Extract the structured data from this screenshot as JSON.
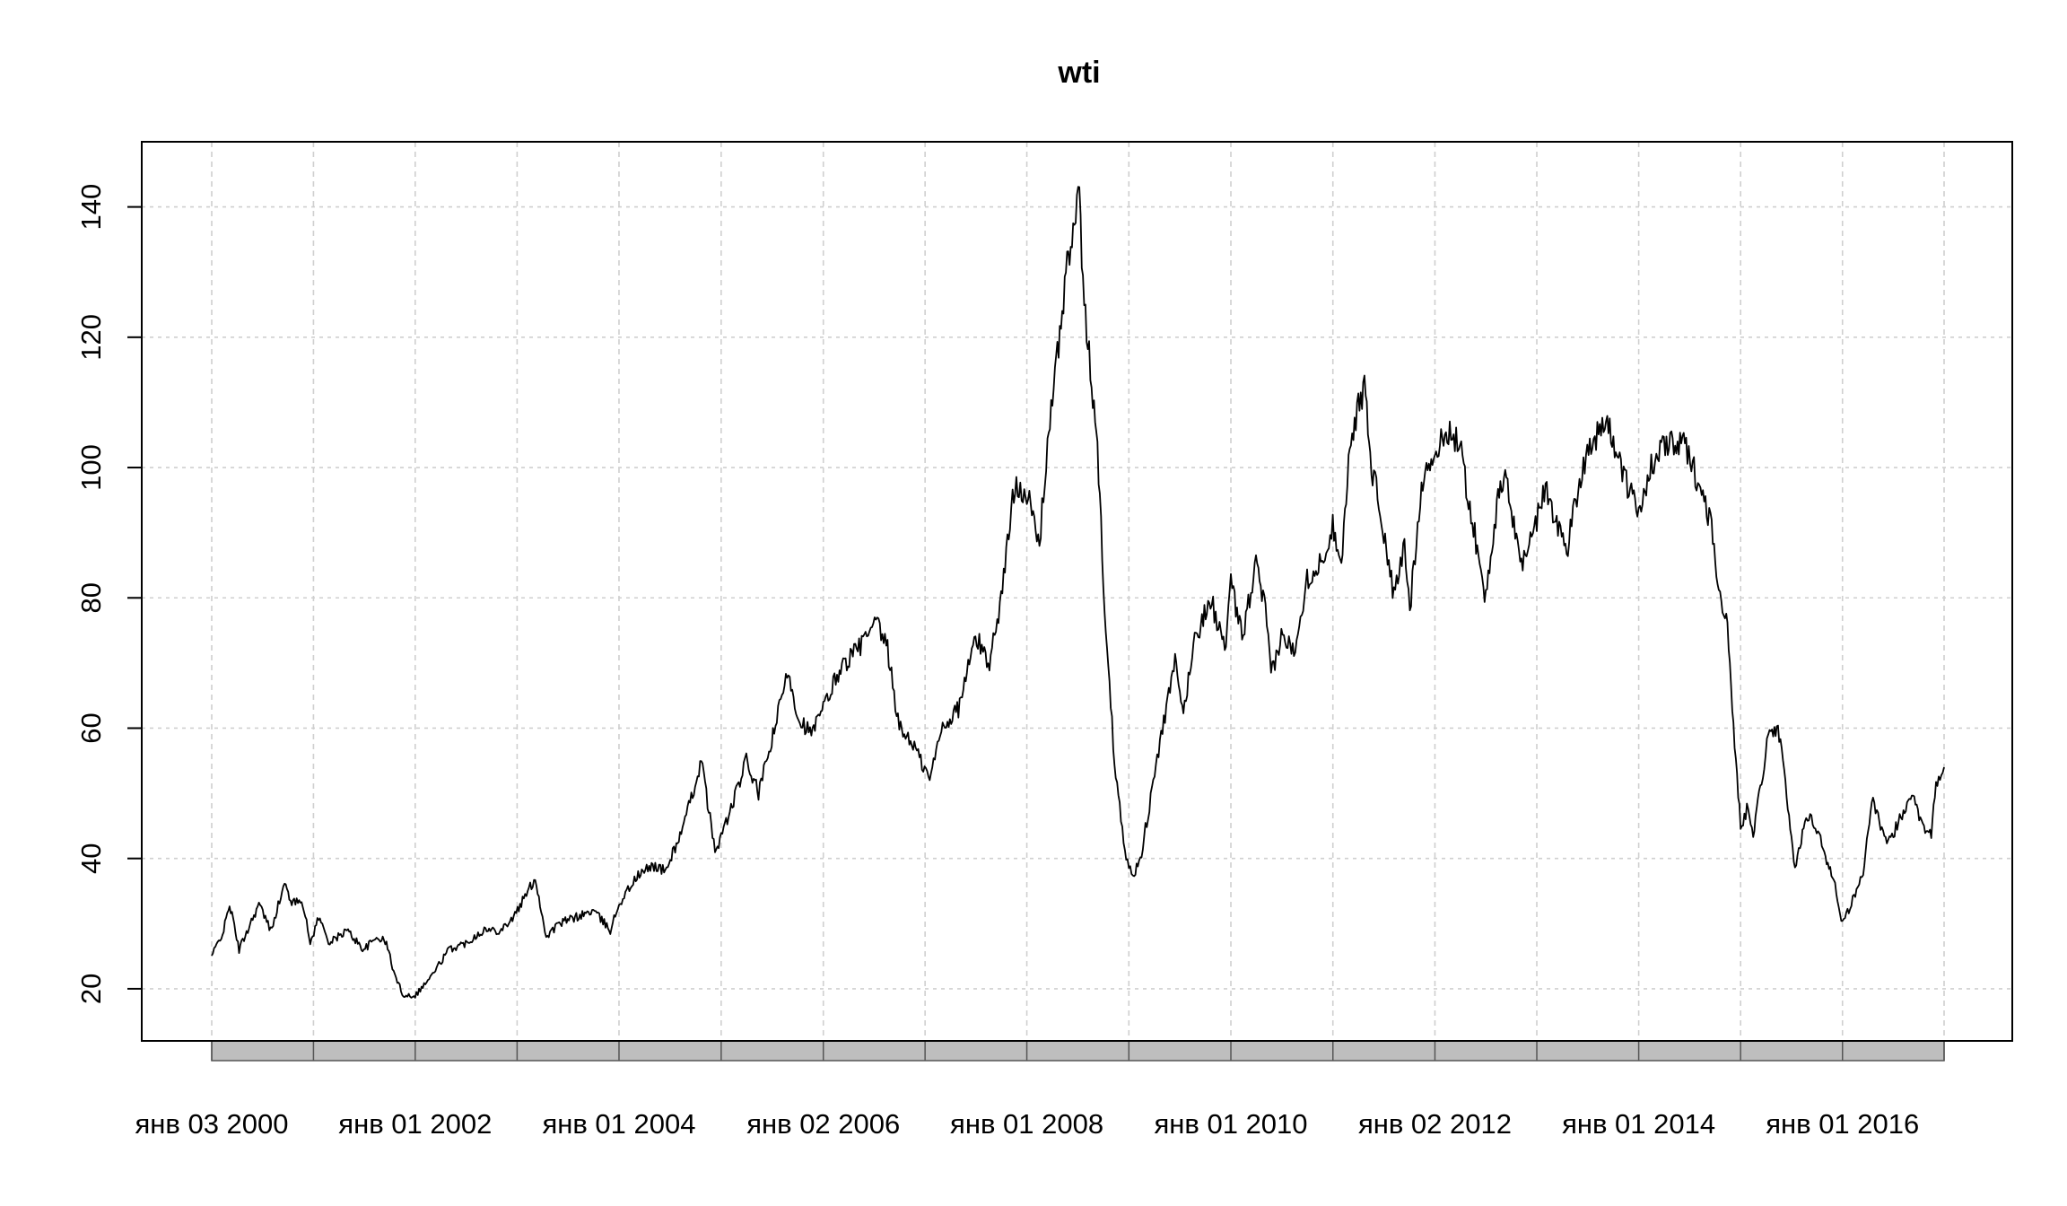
{
  "chart_data": {
    "type": "line",
    "title": "wti",
    "xlabel": "",
    "ylabel": "",
    "ylim": [
      12,
      150
    ],
    "y_ticks": [
      20,
      40,
      60,
      80,
      100,
      120,
      140
    ],
    "y_tick_labels": [
      "20",
      "40",
      "60",
      "80",
      "100",
      "120",
      "140"
    ],
    "x_tick_labels": [
      "янв 03 2000",
      "янв 01 2002",
      "янв 01 2004",
      "янв 02 2006",
      "янв 01 2008",
      "янв 01 2010",
      "янв 02 2012",
      "янв 01 2014",
      "янв 01 2016"
    ],
    "x_tick_dates": [
      "2000-01-03",
      "2002-01-01",
      "2004-01-01",
      "2006-01-02",
      "2008-01-01",
      "2010-01-01",
      "2012-01-02",
      "2014-01-01",
      "2016-01-01"
    ],
    "grid": true,
    "line_color": "#000000",
    "grid_color": "#cfcfcf",
    "axis_band_color": "#bebebe",
    "series": [
      {
        "x": [
          "2000-01-03",
          "2000-02-15",
          "2000-03-07",
          "2000-04-10",
          "2000-05-20",
          "2000-06-20",
          "2000-08-01",
          "2000-09-20",
          "2000-10-20",
          "2000-11-20",
          "2000-12-21",
          "2001-01-20",
          "2001-03-01",
          "2001-05-01",
          "2001-07-01",
          "2001-08-20",
          "2001-09-20",
          "2001-10-20",
          "2001-11-20",
          "2002-01-01",
          "2002-03-01",
          "2002-05-01",
          "2002-07-01",
          "2002-09-01",
          "2002-11-01",
          "2002-12-20",
          "2003-03-07",
          "2003-04-15",
          "2003-06-01",
          "2003-08-01",
          "2003-10-01",
          "2003-12-01",
          "2004-01-01",
          "2004-03-01",
          "2004-05-01",
          "2004-06-15",
          "2004-08-20",
          "2004-10-22",
          "2004-12-10",
          "2005-02-01",
          "2005-04-01",
          "2005-05-15",
          "2005-07-01",
          "2005-08-30",
          "2005-10-01",
          "2005-11-20",
          "2006-01-02",
          "2006-03-01",
          "2006-05-01",
          "2006-07-14",
          "2006-08-20",
          "2006-10-01",
          "2006-11-15",
          "2007-01-18",
          "2007-03-01",
          "2007-05-01",
          "2007-07-01",
          "2007-08-20",
          "2007-10-01",
          "2007-11-20",
          "2008-01-01",
          "2008-02-15",
          "2008-03-15",
          "2008-04-15",
          "2008-05-20",
          "2008-06-15",
          "2008-07-03",
          "2008-07-20",
          "2008-08-20",
          "2008-09-10",
          "2008-10-10",
          "2008-11-10",
          "2008-12-22",
          "2009-01-15",
          "2009-02-15",
          "2009-03-15",
          "2009-05-01",
          "2009-06-15",
          "2009-07-15",
          "2009-08-20",
          "2009-10-20",
          "2009-12-10",
          "2010-01-01",
          "2010-02-10",
          "2010-04-01",
          "2010-05-05",
          "2010-05-25",
          "2010-07-01",
          "2010-08-15",
          "2010-10-01",
          "2010-11-15",
          "2011-01-01",
          "2011-02-01",
          "2011-03-07",
          "2011-04-29",
          "2011-05-15",
          "2011-06-15",
          "2011-08-08",
          "2011-09-15",
          "2011-10-04",
          "2011-11-15",
          "2012-01-02",
          "2012-02-24",
          "2012-04-01",
          "2012-05-15",
          "2012-06-28",
          "2012-08-15",
          "2012-09-14",
          "2012-11-07",
          "2013-01-01",
          "2013-02-01",
          "2013-04-18",
          "2013-05-15",
          "2013-07-01",
          "2013-09-06",
          "2013-10-20",
          "2013-11-27",
          "2014-01-01",
          "2014-02-15",
          "2014-04-15",
          "2014-06-20",
          "2014-08-01",
          "2014-09-15",
          "2014-10-15",
          "2014-11-15",
          "2014-12-15",
          "2015-01-01",
          "2015-01-28",
          "2015-02-15",
          "2015-03-17",
          "2015-04-15",
          "2015-05-15",
          "2015-06-15",
          "2015-07-15",
          "2015-08-24",
          "2015-10-10",
          "2015-11-01",
          "2015-12-01",
          "2016-01-01",
          "2016-02-11",
          "2016-03-15",
          "2016-04-15",
          "2016-06-08",
          "2016-07-15",
          "2016-08-02",
          "2016-09-01",
          "2016-10-19",
          "2016-11-14",
          "2016-12-01",
          "2016-12-30"
        ],
        "y": [
          25,
          29,
          33,
          26,
          30,
          33,
          29,
          36,
          33,
          34,
          27,
          31,
          27,
          29,
          26,
          28,
          27,
          22,
          19,
          19,
          22,
          26,
          27,
          29,
          29,
          31,
          37,
          28,
          30,
          31,
          32,
          29,
          33,
          37,
          39,
          38,
          45,
          55,
          41,
          47,
          55,
          50,
          58,
          69,
          62,
          59,
          63,
          69,
          72,
          76,
          72,
          60,
          58,
          52,
          60,
          63,
          74,
          70,
          80,
          98,
          96,
          88,
          104,
          115,
          130,
          135,
          145,
          127,
          113,
          103,
          75,
          55,
          40,
          37,
          41,
          48,
          60,
          70,
          62,
          73,
          80,
          72,
          82,
          74,
          85,
          78,
          68,
          74,
          72,
          83,
          85,
          91,
          86,
          105,
          113,
          101,
          95,
          80,
          88,
          78,
          98,
          102,
          106,
          103,
          92,
          80,
          95,
          98,
          85,
          92,
          97,
          87,
          94,
          103,
          107,
          102,
          96,
          94,
          100,
          104,
          103,
          98,
          92,
          82,
          75,
          55,
          45,
          48,
          44,
          52,
          60,
          60,
          50,
          38,
          47,
          44,
          40,
          37,
          30,
          34,
          38,
          49,
          42,
          45,
          47,
          50,
          45,
          44,
          51,
          54
        ]
      }
    ]
  }
}
